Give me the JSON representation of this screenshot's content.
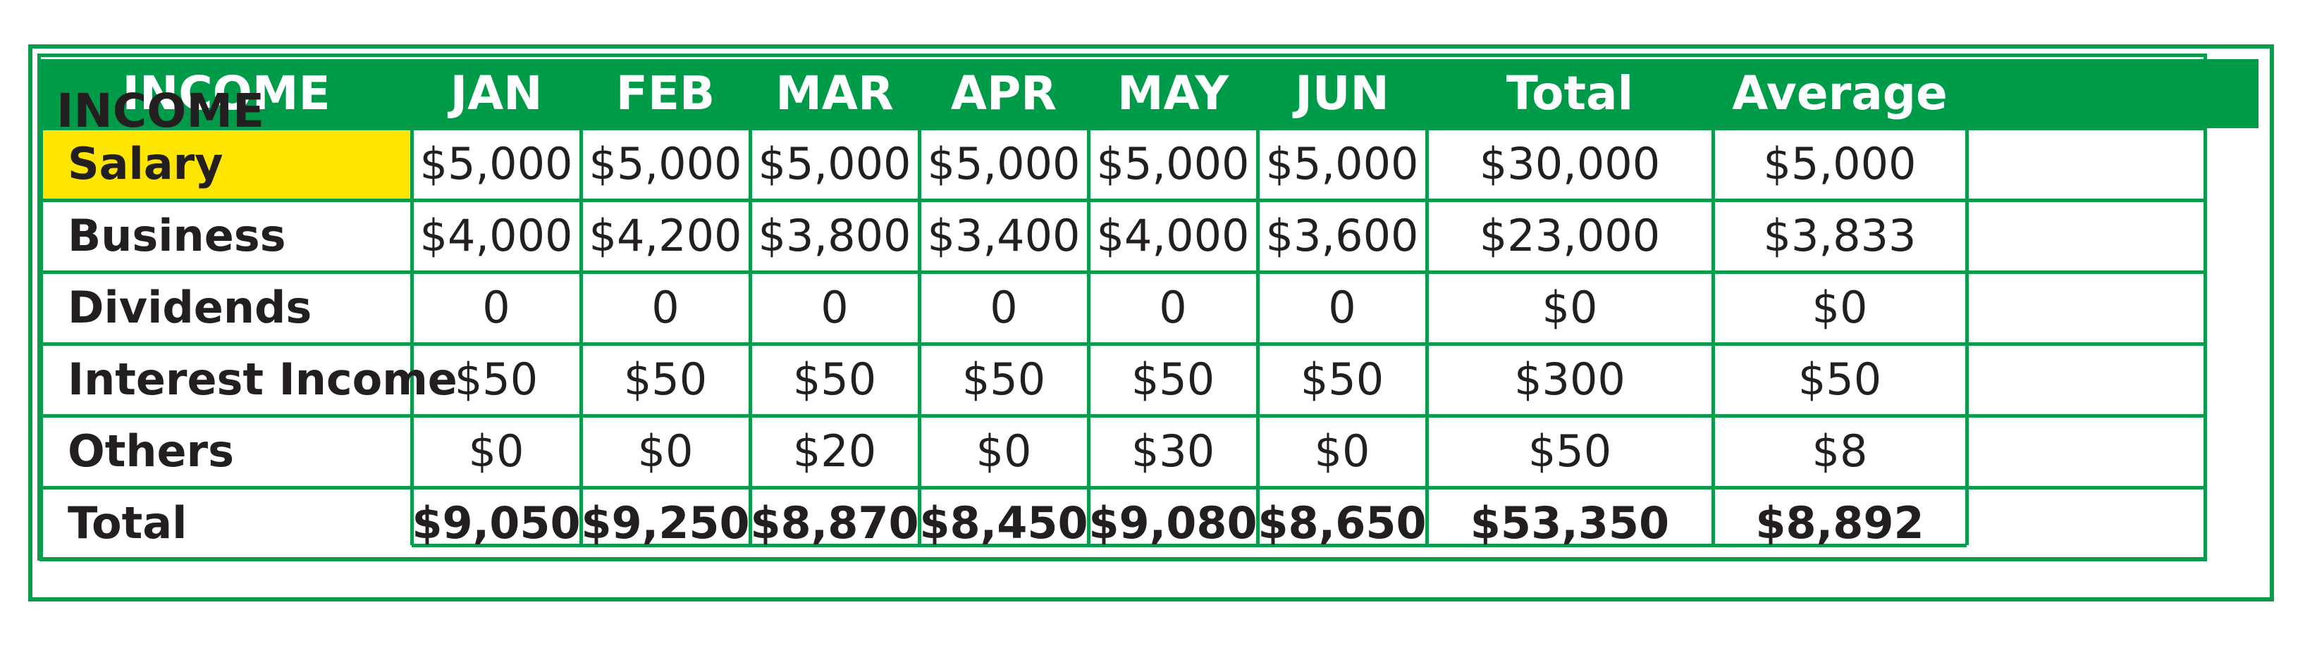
{
  "header": {
    "columns": [
      "INCOME",
      "JAN",
      "FEB",
      "MAR",
      "APR",
      "MAY",
      "JUN",
      "Total",
      "Average"
    ]
  },
  "overlay_title": "INCOME",
  "rows": [
    {
      "label": "Salary",
      "values": [
        "$5,000",
        "$5,000",
        "$5,000",
        "$5,000",
        "$5,000",
        "$5,000",
        "$30,000",
        "$5,000"
      ]
    },
    {
      "label": "Business",
      "values": [
        "$4,000",
        "$4,200",
        "$3,800",
        "$3,400",
        "$4,000",
        "$3,600",
        "$23,000",
        "$3,833"
      ]
    },
    {
      "label": "Dividends",
      "values": [
        "0",
        "0",
        "0",
        "0",
        "0",
        "0",
        "$0",
        "$0"
      ]
    },
    {
      "label": "Interest Income",
      "values": [
        "$50",
        "$50",
        "$50",
        "$50",
        "$50",
        "$50",
        "$300",
        "$50"
      ]
    },
    {
      "label": "Others",
      "values": [
        "$0",
        "$0",
        "$20",
        "$0",
        "$30",
        "$0",
        "$50",
        "$8"
      ]
    },
    {
      "label": "Total",
      "values": [
        "$9,050",
        "$9,250",
        "$8,870",
        "$8,450",
        "$9,080",
        "$8,650",
        "$53,350",
        "$8,892"
      ]
    }
  ],
  "colors": {
    "header_green": "#009b48",
    "border_green": "#0a9b4d",
    "highlight_yellow": "#ffe600",
    "text_dark": "#231f20"
  }
}
